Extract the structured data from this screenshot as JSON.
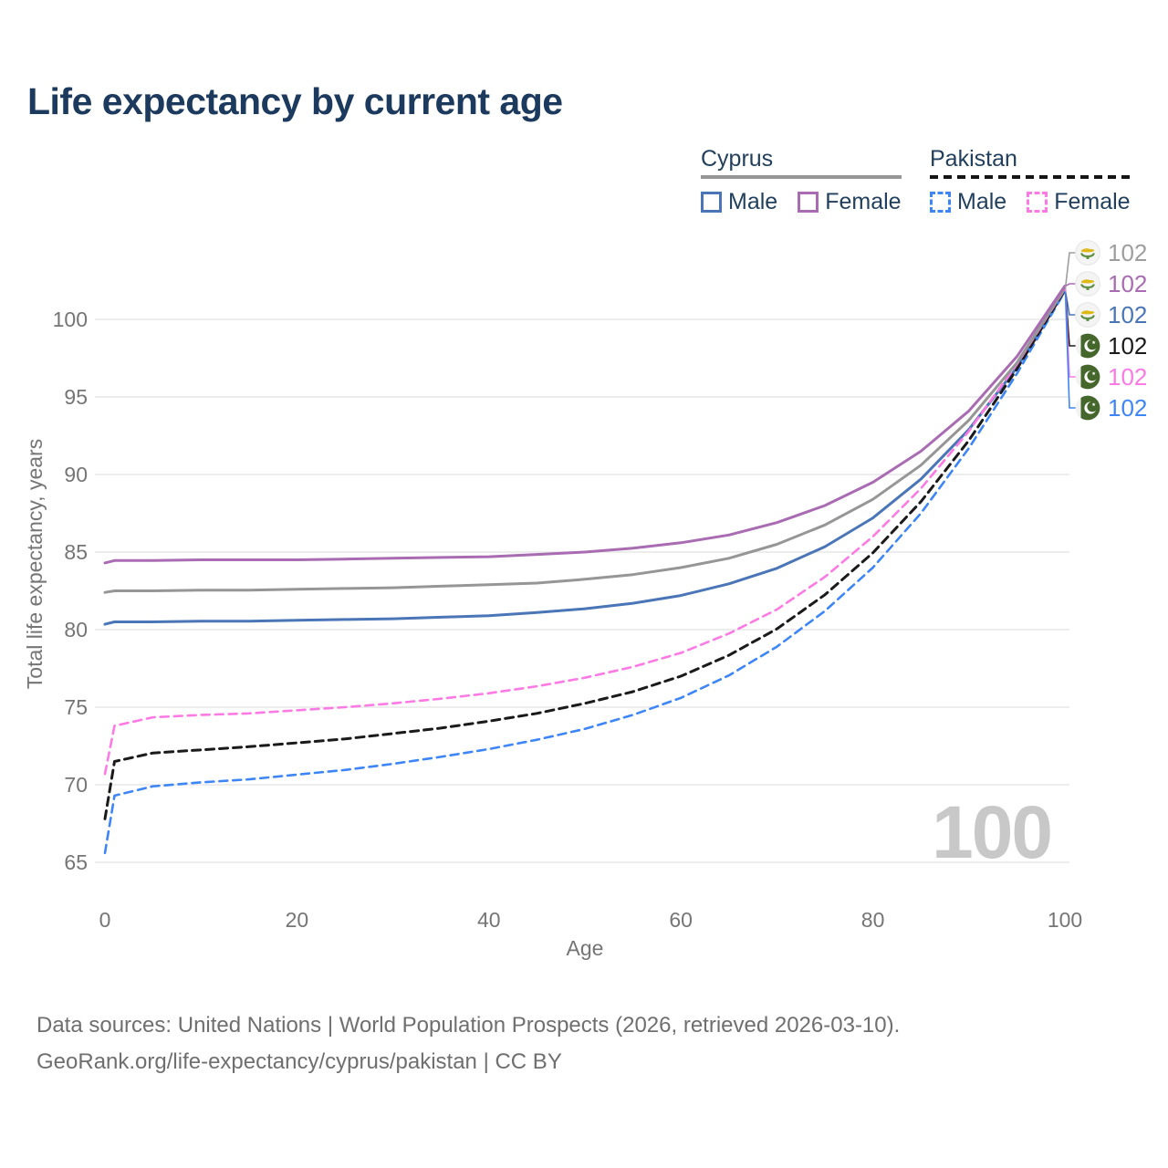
{
  "title": "Life expectancy by current age",
  "colors": {
    "title": "#1c3a5e",
    "axis_text": "#757575",
    "grid": "#e7e7e7",
    "watermark": "#c8c8c8",
    "footer": "#6f6f6f",
    "cyprus_male": "#4a76b8",
    "cyprus_female": "#a96cb3",
    "cyprus_total": "#969696",
    "pakistan_male": "#3e86f5",
    "pakistan_female": "#fb7ae4",
    "pakistan_total": "#1a1a1a"
  },
  "legend": {
    "groups": [
      {
        "name": "Cyprus",
        "line_style": "solid",
        "items": [
          {
            "label": "Male",
            "color": "#4a76b8",
            "dashed": false
          },
          {
            "label": "Female",
            "color": "#a96cb3",
            "dashed": false
          }
        ]
      },
      {
        "name": "Pakistan",
        "line_style": "dashed",
        "items": [
          {
            "label": "Male",
            "color": "#3e86f5",
            "dashed": true
          },
          {
            "label": "Female",
            "color": "#fb7ae4",
            "dashed": true
          }
        ]
      }
    ]
  },
  "chart_data": {
    "type": "line",
    "title": "Life expectancy by current age",
    "xlabel": "Age",
    "ylabel": "Total life expectancy, years",
    "xlim": [
      0,
      100
    ],
    "ylim": [
      65,
      103
    ],
    "x_ticks": [
      0,
      20,
      40,
      60,
      80,
      100
    ],
    "y_ticks": [
      65,
      70,
      75,
      80,
      85,
      90,
      95,
      100
    ],
    "grid": "horizontal-only",
    "legend_position": "top-right",
    "watermark": "100",
    "x": [
      0,
      1,
      5,
      10,
      15,
      20,
      25,
      30,
      35,
      40,
      45,
      50,
      55,
      60,
      65,
      70,
      75,
      80,
      85,
      90,
      95,
      100
    ],
    "series": [
      {
        "id": "cyprus-male",
        "name": "Cyprus Male",
        "color": "#4a76b8",
        "dash": "solid",
        "width": 3,
        "values": [
          80.35,
          80.5,
          80.5,
          80.55,
          80.55,
          80.6,
          80.65,
          80.7,
          80.8,
          80.9,
          81.1,
          81.35,
          81.7,
          82.2,
          82.95,
          83.95,
          85.35,
          87.2,
          89.7,
          92.9,
          96.9,
          101.85
        ]
      },
      {
        "id": "pakistan-male",
        "name": "Pakistan Male",
        "color": "#3e86f5",
        "dash": "dashed",
        "width": 2.6,
        "values": [
          65.6,
          69.3,
          69.9,
          70.15,
          70.35,
          70.65,
          70.95,
          71.35,
          71.8,
          72.3,
          72.9,
          73.6,
          74.5,
          75.6,
          77.05,
          78.9,
          81.2,
          84.0,
          87.5,
          91.7,
          96.5,
          101.8
        ]
      },
      {
        "id": "pakistan-total",
        "name": "Pakistan",
        "color": "#1a1a1a",
        "dash": "dashed",
        "width": 3,
        "values": [
          67.8,
          71.5,
          72.05,
          72.25,
          72.45,
          72.7,
          72.95,
          73.3,
          73.65,
          74.1,
          74.6,
          75.25,
          76.0,
          77.0,
          78.35,
          80.05,
          82.25,
          84.95,
          88.25,
          92.2,
          96.8,
          101.9
        ]
      },
      {
        "id": "pakistan-female",
        "name": "Pakistan Female",
        "color": "#fb7ae4",
        "dash": "dashed",
        "width": 2.6,
        "values": [
          70.7,
          73.8,
          74.35,
          74.5,
          74.6,
          74.8,
          75.0,
          75.25,
          75.55,
          75.9,
          76.35,
          76.9,
          77.6,
          78.5,
          79.75,
          81.3,
          83.4,
          86.0,
          89.1,
          92.8,
          97.1,
          101.95
        ]
      },
      {
        "id": "cyprus-total",
        "name": "Cyprus",
        "color": "#969696",
        "dash": "solid",
        "width": 3,
        "values": [
          82.4,
          82.5,
          82.5,
          82.55,
          82.55,
          82.6,
          82.65,
          82.7,
          82.8,
          82.9,
          83.0,
          83.25,
          83.55,
          84.0,
          84.6,
          85.5,
          86.75,
          88.4,
          90.6,
          93.5,
          97.2,
          102.0
        ]
      },
      {
        "id": "cyprus-female",
        "name": "Cyprus Female",
        "color": "#a96cb3",
        "dash": "solid",
        "width": 3,
        "values": [
          84.3,
          84.45,
          84.45,
          84.5,
          84.5,
          84.5,
          84.55,
          84.6,
          84.65,
          84.7,
          84.85,
          85.0,
          85.25,
          85.6,
          86.1,
          86.9,
          88.0,
          89.5,
          91.5,
          94.1,
          97.6,
          102.15
        ]
      }
    ],
    "end_labels": [
      {
        "series": "cyprus-total",
        "flag": "cyprus",
        "value": "102",
        "color": "#9e9e9e"
      },
      {
        "series": "cyprus-female",
        "flag": "cyprus",
        "value": "102",
        "color": "#a96cb3"
      },
      {
        "series": "cyprus-male",
        "flag": "cyprus",
        "value": "102",
        "color": "#4a76b8"
      },
      {
        "series": "pakistan-total",
        "flag": "pakistan",
        "value": "102",
        "color": "#1a1a1a"
      },
      {
        "series": "pakistan-female",
        "flag": "pakistan",
        "value": "102",
        "color": "#fb7ae4"
      },
      {
        "series": "pakistan-male",
        "flag": "pakistan",
        "value": "102",
        "color": "#3e86f5"
      }
    ]
  },
  "footer": {
    "line1": "Data sources: United Nations | World Population Prospects (2026, retrieved 2026-03-10).",
    "line2": "GeoRank.org/life-expectancy/cyprus/pakistan | CC BY"
  }
}
